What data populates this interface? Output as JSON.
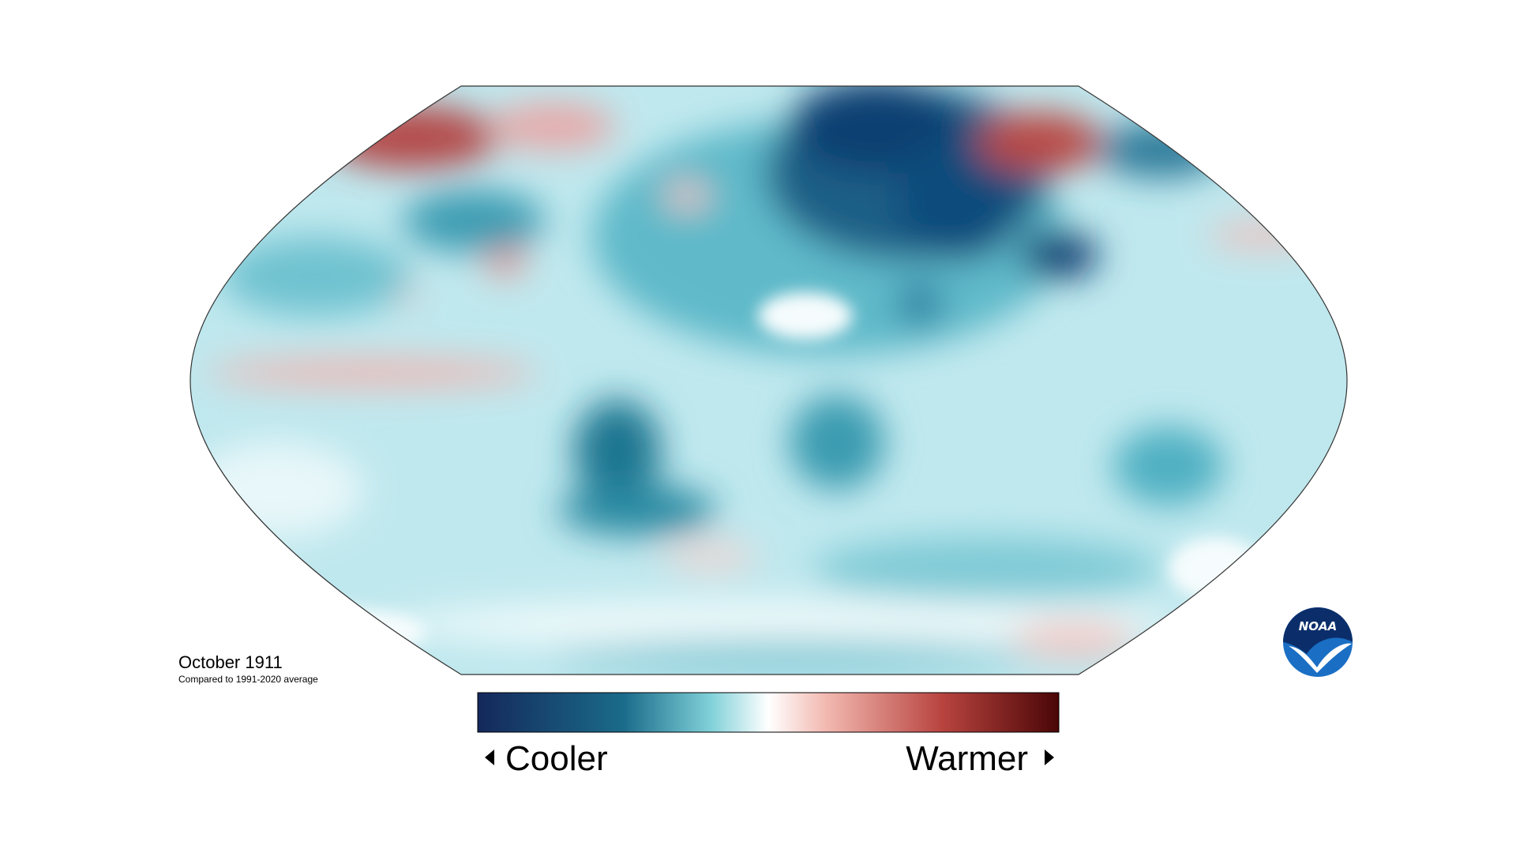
{
  "map": {
    "title": "October 1911",
    "subtitle": "Compared to 1991-2020 average"
  },
  "legend": {
    "low": "Cooler",
    "high": "Warmer"
  },
  "logo": {
    "text": "NOAA"
  }
}
